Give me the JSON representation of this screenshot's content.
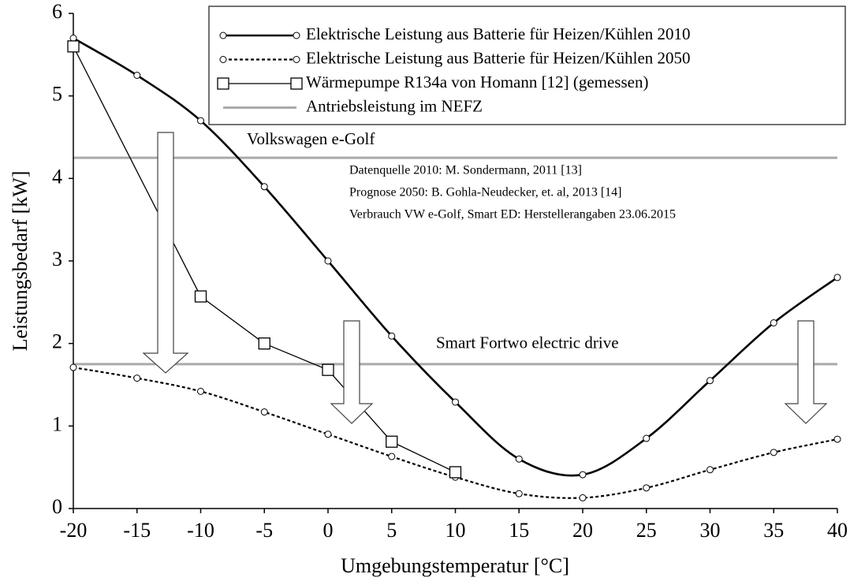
{
  "chart_data": {
    "type": "line",
    "xlabel": "Umgebungstemperatur [°C]",
    "ylabel": "Leistungsbedarf [kW]",
    "x": [
      -20,
      -15,
      -10,
      -5,
      0,
      5,
      10,
      15,
      20,
      25,
      30,
      35,
      40
    ],
    "xlim": [
      -20,
      40
    ],
    "xticks": [
      -20,
      -15,
      -10,
      -5,
      0,
      5,
      10,
      15,
      20,
      25,
      30,
      35,
      40
    ],
    "ylim": [
      0,
      6
    ],
    "yticks": [
      0,
      1,
      2,
      3,
      4,
      5,
      6
    ],
    "series": [
      {
        "name": "Elektrische Leistung aus Batterie für Heizen/Kühlen 2010",
        "color": "#000000",
        "style": "solid",
        "smooth": true,
        "marker": "circle",
        "values": [
          5.7,
          5.25,
          4.7,
          3.9,
          3.0,
          2.09,
          1.29,
          0.6,
          0.41,
          0.85,
          1.55,
          2.25,
          2.8
        ]
      },
      {
        "name": "Elektrische Leistung aus Batterie für Heizen/Kühlen 2050",
        "color": "#000000",
        "style": "dotted",
        "smooth": true,
        "marker": "circle",
        "values": [
          1.71,
          1.58,
          1.42,
          1.17,
          0.9,
          0.63,
          0.38,
          0.18,
          0.13,
          0.25,
          0.47,
          0.68,
          0.84
        ]
      },
      {
        "name": "Wärmepumpe R134a von Homann [12] (gemessen)",
        "color": "#000000",
        "style": "thin",
        "smooth": false,
        "marker": "square",
        "x": [
          -20,
          -10,
          -5,
          0,
          5,
          10
        ],
        "values": [
          5.6,
          2.57,
          2.0,
          1.68,
          0.81,
          0.44
        ]
      }
    ],
    "reference": {
      "name": "Antriebsleistung im NEFZ",
      "color": "#aaaaaa",
      "lines": [
        {
          "label": "Volkswagen e-Golf",
          "value": 4.25
        },
        {
          "label": "Smart Fortwo electric drive",
          "value": 1.75
        }
      ]
    },
    "annotations": [
      "Datenquelle 2010: M. Sondermann, 2011 [13]",
      "Prognose 2050: B. Gohla-Neudecker, et. al, 2013 [14]",
      "Verbrauch VW e-Golf, Smart ED: Herstellerangaben 23.06.2015"
    ]
  }
}
